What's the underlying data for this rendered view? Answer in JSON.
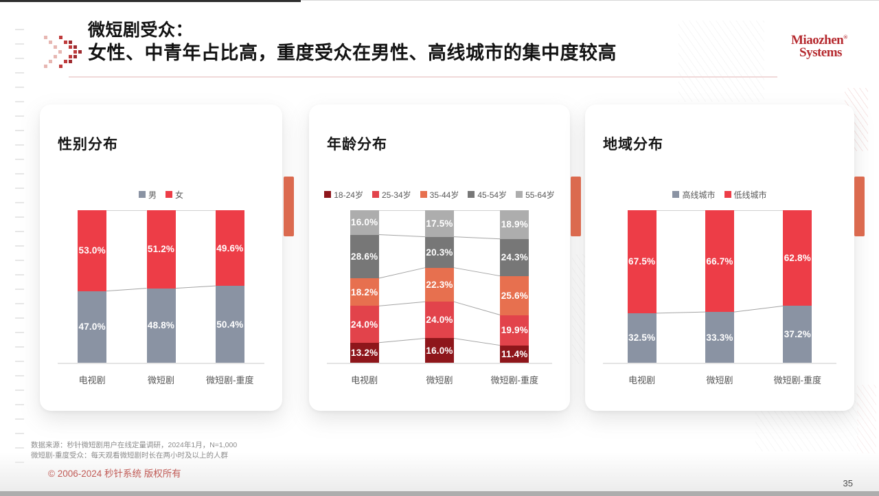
{
  "slide": {
    "title_line1": "微短剧受众：",
    "title_line2": "女性、中青年占比高，重度受众在男性、高线城市的集中度较高",
    "brand_line1": "Miaozhen",
    "brand_reg": "®",
    "brand_line2": "Systems",
    "footnote_line1": "数据来源：秒针微短剧用户在线定量调研，2024年1月，N=1,000",
    "footnote_line2": "微短剧-重度受众：每天观看微短剧时长在两小时及以上的人群",
    "copyright": "© 2006-2024 秒针系统 版权所有",
    "page_number": "35"
  },
  "colors": {
    "brand_red": "#b5292e",
    "accent_tab_orange": "#db6a4f",
    "male_gray": "#8a93a3",
    "female_red": "#ed3d47",
    "copyright_red": "#c05a55"
  },
  "icons": {
    "header_logo": "chevron-dots-icon",
    "legend_marker": "square-swatch-icon"
  },
  "chart_data": [
    {
      "type": "bar",
      "stacked": true,
      "title": "性别分布",
      "categories": [
        "电视剧",
        "微短剧",
        "微短剧-重度"
      ],
      "series": [
        {
          "name": "男",
          "color": "#8a93a3",
          "values": [
            47.0,
            48.8,
            50.4
          ]
        },
        {
          "name": "女",
          "color": "#ed3d47",
          "values": [
            53.0,
            51.2,
            49.6
          ]
        }
      ],
      "value_suffix": "%",
      "ylim": [
        0,
        100
      ],
      "grid": false,
      "legend_position": "top-center",
      "connector_lines": true
    },
    {
      "type": "bar",
      "stacked": true,
      "title": "年龄分布",
      "categories": [
        "电视剧",
        "微短剧",
        "微短剧-重度"
      ],
      "series": [
        {
          "name": "18-24岁",
          "color": "#8e161b",
          "values": [
            13.2,
            16.0,
            11.4
          ]
        },
        {
          "name": "25-34岁",
          "color": "#e2434b",
          "values": [
            24.0,
            24.0,
            19.9
          ]
        },
        {
          "name": "35-44岁",
          "color": "#e7704f",
          "values": [
            18.2,
            22.3,
            25.6
          ]
        },
        {
          "name": "45-54岁",
          "color": "#777777",
          "values": [
            28.6,
            20.3,
            24.3
          ]
        },
        {
          "name": "55-64岁",
          "color": "#adadad",
          "values": [
            16.0,
            17.5,
            18.9
          ]
        }
      ],
      "value_suffix": "%",
      "ylim": [
        0,
        100
      ],
      "grid": false,
      "legend_position": "top-center",
      "connector_lines": true
    },
    {
      "type": "bar",
      "stacked": true,
      "title": "地域分布",
      "categories": [
        "电视剧",
        "微短剧",
        "微短剧-重度"
      ],
      "series": [
        {
          "name": "高线城市",
          "color": "#8a93a3",
          "values": [
            32.5,
            33.3,
            37.2
          ]
        },
        {
          "name": "低线城市",
          "color": "#ed3d47",
          "values": [
            67.5,
            66.7,
            62.8
          ]
        }
      ],
      "value_suffix": "%",
      "ylim": [
        0,
        100
      ],
      "grid": false,
      "legend_position": "top-center",
      "connector_lines": true
    }
  ]
}
